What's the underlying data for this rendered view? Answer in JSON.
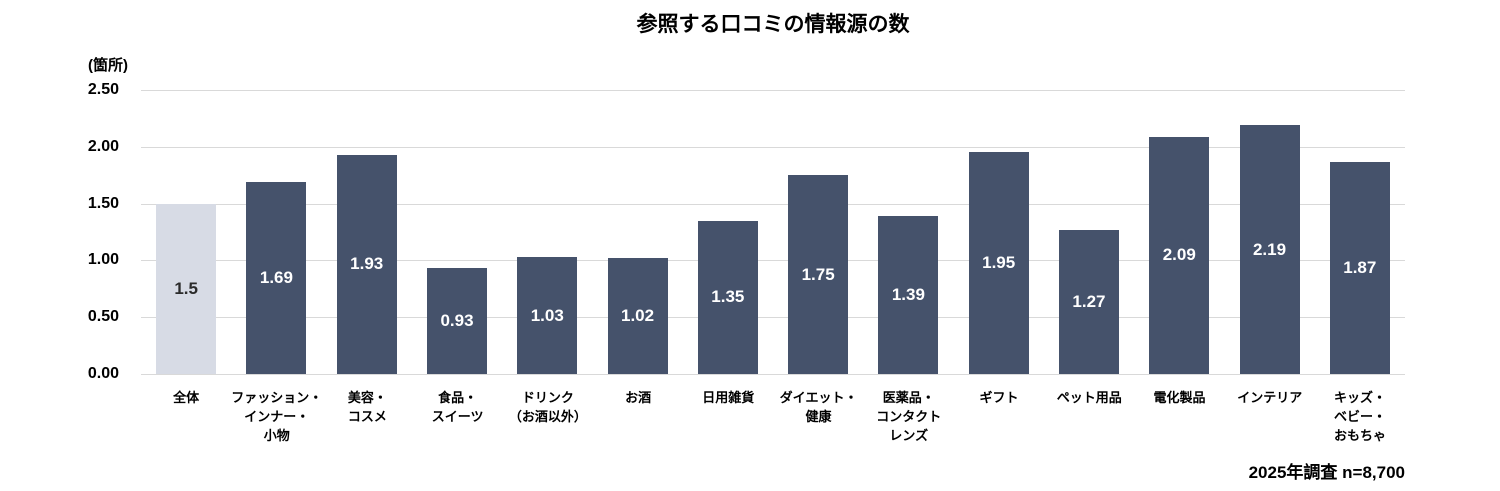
{
  "title": "参照する口コミの情報源の数",
  "footnote": "2025年調査 n=8,700",
  "colors": {
    "bar": "#45526B",
    "bar_highlight": "#D7DBE5",
    "gridline": "#D9D9D9",
    "value_text": "#FFFFFF",
    "value_text_highlight": "#2B2B2B",
    "text": "#000000",
    "background": "#FFFFFF"
  },
  "chart_data": {
    "type": "bar",
    "title": "参照する口コミの情報源の数",
    "unit_label": "(箇所)",
    "xlabel": "",
    "ylabel": "(箇所)",
    "ylim": [
      0,
      2.5
    ],
    "ytick_step": 0.5,
    "yticks_top_to_bottom": [
      "2.50",
      "2.00",
      "1.50",
      "1.00",
      "0.50",
      "0.00"
    ],
    "grid": "horizontal",
    "legend": "none",
    "note": "2025年調査 n=8,700",
    "highlight_index": 0,
    "categories": [
      "全体",
      "ファッション・インナー・小物",
      "美容・コスメ",
      "食品・スイーツ",
      "ドリンク（お酒以外）",
      "お酒",
      "日用雑貨",
      "ダイエット・健康",
      "医薬品・コンタクトレンズ",
      "ギフト",
      "ペット用品",
      "電化製品",
      "インテリア",
      "キッズ・ベビー・おもちゃ"
    ],
    "category_label_lines": [
      [
        "全体"
      ],
      [
        "ファッション・",
        "インナー・",
        "小物"
      ],
      [
        "美容・",
        "コスメ"
      ],
      [
        "食品・",
        "スイーツ"
      ],
      [
        "ドリンク",
        "（お酒以外）"
      ],
      [
        "お酒"
      ],
      [
        "日用雑貨"
      ],
      [
        "ダイエット・",
        "健康"
      ],
      [
        "医薬品・",
        "コンタクト",
        "レンズ"
      ],
      [
        "ギフト"
      ],
      [
        "ペット用品"
      ],
      [
        "電化製品"
      ],
      [
        "インテリア"
      ],
      [
        "キッズ・",
        "ベビー・",
        "おもちゃ"
      ]
    ],
    "values": [
      1.5,
      1.69,
      1.93,
      0.93,
      1.03,
      1.02,
      1.35,
      1.75,
      1.39,
      1.95,
      1.27,
      2.09,
      2.19,
      1.87
    ],
    "value_labels": [
      "1.5",
      "1.69",
      "1.93",
      "0.93",
      "1.03",
      "1.02",
      "1.35",
      "1.75",
      "1.39",
      "1.95",
      "1.27",
      "2.09",
      "2.19",
      "1.87"
    ]
  }
}
